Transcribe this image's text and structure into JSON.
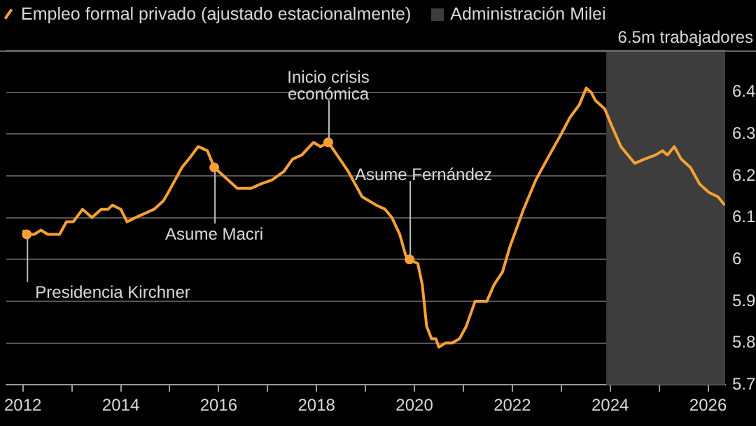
{
  "chart_data": {
    "type": "line",
    "x": [
      2012.0,
      2012.08,
      2012.23,
      2012.37,
      2012.51,
      2012.75,
      2012.89,
      2013.03,
      2013.22,
      2013.41,
      2013.6,
      2013.74,
      2013.83,
      2014.0,
      2014.13,
      2014.3,
      2014.49,
      2014.68,
      2014.87,
      2014.97,
      2015.11,
      2015.25,
      2015.39,
      2015.58,
      2015.77,
      2015.91,
      2016.1,
      2016.38,
      2016.66,
      2016.85,
      2017.09,
      2017.33,
      2017.51,
      2017.7,
      2017.94,
      2018.08,
      2018.24,
      2018.36,
      2018.65,
      2018.93,
      2019.22,
      2019.4,
      2019.54,
      2019.7,
      2019.82,
      2019.9,
      2020.07,
      2020.16,
      2020.25,
      2020.35,
      2020.44,
      2020.5,
      2020.63,
      2020.77,
      2020.92,
      2021.06,
      2021.24,
      2021.48,
      2021.63,
      2021.8,
      2021.95,
      2022.23,
      2022.48,
      2022.76,
      2023.0,
      2023.18,
      2023.37,
      2023.51,
      2023.61,
      2023.7,
      2023.89,
      2024.03,
      2024.22,
      2024.5,
      2024.7,
      2024.93,
      2025.07,
      2025.17,
      2025.31,
      2025.45,
      2025.64,
      2025.83,
      2026.02,
      2026.2,
      2026.34
    ],
    "series": [
      {
        "name": "Empleo formal privado (ajustado estacionalmente)",
        "color": "#f7a035",
        "values": [
          6.07,
          6.06,
          6.06,
          6.07,
          6.06,
          6.06,
          6.09,
          6.09,
          6.12,
          6.1,
          6.12,
          6.12,
          6.13,
          6.12,
          6.09,
          6.1,
          6.11,
          6.12,
          6.14,
          6.16,
          6.19,
          6.22,
          6.24,
          6.27,
          6.26,
          6.22,
          6.2,
          6.17,
          6.17,
          6.18,
          6.19,
          6.21,
          6.24,
          6.25,
          6.28,
          6.27,
          6.28,
          6.26,
          6.21,
          6.15,
          6.13,
          6.12,
          6.1,
          6.06,
          6.01,
          6.0,
          5.99,
          5.94,
          5.84,
          5.81,
          5.81,
          5.79,
          5.8,
          5.8,
          5.81,
          5.84,
          5.9,
          5.9,
          5.94,
          5.97,
          6.03,
          6.12,
          6.19,
          6.25,
          6.3,
          6.34,
          6.37,
          6.41,
          6.4,
          6.38,
          6.36,
          6.32,
          6.27,
          6.23,
          6.24,
          6.25,
          6.26,
          6.25,
          6.27,
          6.24,
          6.22,
          6.18,
          6.16,
          6.15,
          6.13
        ]
      }
    ],
    "xlim": [
      2011.66,
      2026.35
    ],
    "xticks": [
      2012,
      {
        "value": 2013,
        "label": null
      },
      2014,
      {
        "value": 2015,
        "label": null
      },
      2016,
      {
        "value": 2017,
        "label": null
      },
      2018,
      {
        "value": 2019,
        "label": null
      },
      2020,
      {
        "value": 2021,
        "label": null
      },
      2022,
      {
        "value": 2023,
        "label": null
      },
      2024,
      {
        "value": 2025,
        "label": null
      },
      2026
    ],
    "ylim": [
      5.7,
      6.5
    ],
    "yticks": [
      5.7,
      5.8,
      5.9,
      6.0,
      6.1,
      6.2,
      6.3,
      6.4,
      {
        "value": 6.5,
        "label": null
      }
    ],
    "ylabel": "6.5m trabajadores",
    "grid": "y",
    "legend": "top left",
    "marker": "none",
    "line_style": "solid",
    "bands": [
      {
        "axis": "x",
        "from": 2023.92,
        "to": 2026.35,
        "label": "Administración Milei",
        "color": "#3d3d3d"
      }
    ],
    "annotations": [
      {
        "text": "Presidencia Kirchner",
        "x": 2012.08,
        "y": 6.06
      },
      {
        "text": "Asume Macri",
        "x": 2015.91,
        "y": 6.22
      },
      {
        "text": "Inicio crisis\neconómica",
        "x": 2018.24,
        "y": 6.28
      },
      {
        "text": "Asume Fernández",
        "x": 2019.9,
        "y": 6.0
      }
    ]
  }
}
